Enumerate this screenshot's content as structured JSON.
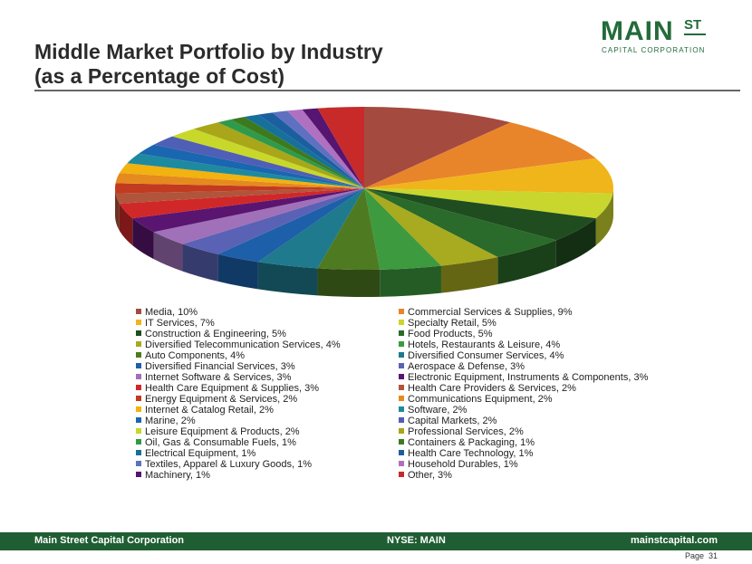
{
  "header": {
    "title_line1": "Middle Market Portfolio by Industry",
    "title_line2": "(as a Percentage of Cost)",
    "logo_main": "MAIN",
    "logo_super": "ST",
    "logo_sub": "CAPITAL CORPORATION"
  },
  "chart_data": {
    "type": "pie",
    "title": "",
    "legend_position": "bottom",
    "slices": [
      {
        "label": "Media, 10%",
        "value": 10,
        "color": "#a44a3f"
      },
      {
        "label": "Commercial Services & Supplies, 9%",
        "value": 9,
        "color": "#e8852b"
      },
      {
        "label": "IT Services, 7%",
        "value": 7,
        "color": "#f0b51a"
      },
      {
        "label": "Specialty Retail, 5%",
        "value": 5,
        "color": "#c9d62e"
      },
      {
        "label": "Construction & Engineering, 5%",
        "value": 5,
        "color": "#1f4d1f"
      },
      {
        "label": "Food Products, 5%",
        "value": 5,
        "color": "#2a6a2a"
      },
      {
        "label": "Diversified Telecommunication Services, 4%",
        "value": 4,
        "color": "#a8aa1f"
      },
      {
        "label": "Hotels, Restaurants & Leisure, 4%",
        "value": 4,
        "color": "#3e9a3e"
      },
      {
        "label": "Auto Components, 4%",
        "value": 4,
        "color": "#4e7a22"
      },
      {
        "label": "Diversified Consumer Services, 4%",
        "value": 4,
        "color": "#1e7a8c"
      },
      {
        "label": "Diversified Financial Services, 3%",
        "value": 3,
        "color": "#1d5fa8"
      },
      {
        "label": "Aerospace & Defense, 3%",
        "value": 3,
        "color": "#5a62b5"
      },
      {
        "label": "Internet Software & Services, 3%",
        "value": 3,
        "color": "#a070b8"
      },
      {
        "label": "Electronic Equipment, Instruments & Components, 3%",
        "value": 3,
        "color": "#5a1570"
      },
      {
        "label": "Health Care Equipment & Supplies, 3%",
        "value": 3,
        "color": "#d02828"
      },
      {
        "label": "Health Care Providers & Services, 2%",
        "value": 2,
        "color": "#b0553c"
      },
      {
        "label": "Energy Equipment & Services, 2%",
        "value": 2,
        "color": "#c23a20"
      },
      {
        "label": "Communications Equipment, 2%",
        "value": 2,
        "color": "#e58a1e"
      },
      {
        "label": "Internet & Catalog Retail, 2%",
        "value": 2,
        "color": "#f2b20f"
      },
      {
        "label": "Software, 2%",
        "value": 2,
        "color": "#1e8aa0"
      },
      {
        "label": "Marine, 2%",
        "value": 2,
        "color": "#1a66b0"
      },
      {
        "label": "Capital Markets, 2%",
        "value": 2,
        "color": "#4f5fb5"
      },
      {
        "label": "Leisure Equipment & Products, 2%",
        "value": 2,
        "color": "#c8d82a"
      },
      {
        "label": "Professional Services, 2%",
        "value": 2,
        "color": "#a9a61a"
      },
      {
        "label": "Oil, Gas & Consumable Fuels, 1%",
        "value": 1,
        "color": "#2f9a4a"
      },
      {
        "label": "Containers & Packaging, 1%",
        "value": 1,
        "color": "#3d7a1e"
      },
      {
        "label": "Electrical Equipment, 1%",
        "value": 1,
        "color": "#17709a"
      },
      {
        "label": "Health Care Technology, 1%",
        "value": 1,
        "color": "#1c5fa0"
      },
      {
        "label": "Textiles, Apparel & Luxury Goods, 1%",
        "value": 1,
        "color": "#6070c0"
      },
      {
        "label": "Household Durables, 1%",
        "value": 1,
        "color": "#b070c0"
      },
      {
        "label": "Machinery, 1%",
        "value": 1,
        "color": "#551570"
      },
      {
        "label": "Other, 3%",
        "value": 3,
        "color": "#c82a2a"
      }
    ]
  },
  "footer": {
    "company": "Main Street Capital Corporation",
    "ticker": "NYSE: MAIN",
    "website": "mainstcapital.com",
    "page_label": "Page",
    "page_number": "31"
  }
}
